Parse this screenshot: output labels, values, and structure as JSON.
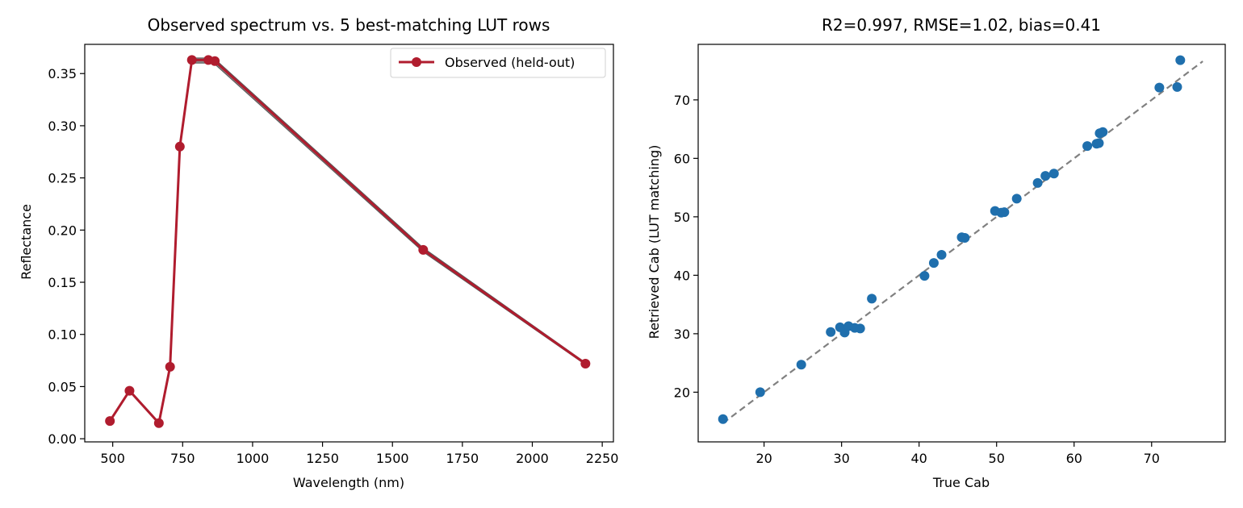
{
  "chart_data": [
    {
      "type": "line",
      "title": "Observed spectrum vs. 5 best-matching LUT rows",
      "xlabel": "Wavelength (nm)",
      "ylabel": "Reflectance",
      "xlim": [
        400,
        2290
      ],
      "ylim": [
        -0.003,
        0.378
      ],
      "xticks": [
        500,
        750,
        1000,
        1250,
        1500,
        1750,
        2000,
        2250
      ],
      "xtick_labels": [
        "500",
        "750",
        "1000",
        "1250",
        "1500",
        "1750",
        "2000",
        "2250"
      ],
      "yticks": [
        0.0,
        0.05,
        0.1,
        0.15,
        0.2,
        0.25,
        0.3,
        0.35
      ],
      "ytick_labels": [
        "0.00",
        "0.05",
        "0.10",
        "0.15",
        "0.20",
        "0.25",
        "0.30",
        "0.35"
      ],
      "grid": false,
      "legend": {
        "placement": "top-right",
        "entries": [
          "Observed (held-out)"
        ]
      },
      "colors": {
        "observed": "#b01c2e",
        "lut_rows": "#555555"
      },
      "series": [
        {
          "name": "Observed (held-out)",
          "x": [
            490,
            560,
            665,
            705,
            740,
            783,
            842,
            865,
            1610,
            2190
          ],
          "y": [
            0.017,
            0.046,
            0.015,
            0.069,
            0.28,
            0.363,
            0.363,
            0.362,
            0.181,
            0.072
          ]
        }
      ],
      "band": {
        "x": [
          490,
          560,
          665,
          705,
          740,
          783,
          842,
          865,
          1610,
          2190
        ],
        "y_low": [
          0.016,
          0.045,
          0.014,
          0.068,
          0.278,
          0.36,
          0.36,
          0.359,
          0.179,
          0.071
        ],
        "y_high": [
          0.018,
          0.047,
          0.016,
          0.07,
          0.282,
          0.365,
          0.365,
          0.364,
          0.183,
          0.073
        ]
      }
    },
    {
      "type": "scatter",
      "title": "R2=0.997, RMSE=1.02, bias=0.41",
      "xlabel": "True Cab",
      "ylabel": "Retrieved Cab (LUT matching)",
      "xlim": [
        11.5,
        79.5
      ],
      "ylim": [
        11.5,
        79.5
      ],
      "xticks": [
        20,
        30,
        40,
        50,
        60,
        70
      ],
      "xtick_labels": [
        "20",
        "30",
        "40",
        "50",
        "60",
        "70"
      ],
      "yticks": [
        20,
        30,
        40,
        50,
        60,
        70
      ],
      "ytick_labels": [
        "20",
        "30",
        "40",
        "50",
        "60",
        "70"
      ],
      "grid": false,
      "colors": {
        "points": "#1f6fad",
        "reference_line": "#808080"
      },
      "reference_line": {
        "x": [
          14.7,
          76.6
        ],
        "y": [
          14.7,
          76.6
        ]
      },
      "series": [
        {
          "x": [
            14.7,
            19.5,
            24.8,
            28.6,
            29.8,
            30.4,
            30.9,
            31.7,
            32.4,
            33.9,
            40.7,
            41.9,
            42.9,
            45.5,
            45.9,
            49.8,
            50.6,
            51.0,
            52.6,
            55.3,
            56.3,
            57.4,
            61.7,
            62.9,
            63.2,
            63.3,
            63.7,
            71.0,
            73.3,
            73.7
          ],
          "y": [
            15.4,
            20.0,
            24.7,
            30.3,
            31.1,
            30.2,
            31.3,
            31.0,
            30.9,
            36.0,
            39.9,
            42.1,
            43.5,
            46.5,
            46.4,
            51.0,
            50.7,
            50.8,
            53.1,
            55.8,
            57.0,
            57.4,
            62.1,
            62.5,
            62.6,
            64.3,
            64.5,
            72.1,
            72.2,
            76.8
          ]
        }
      ]
    }
  ]
}
